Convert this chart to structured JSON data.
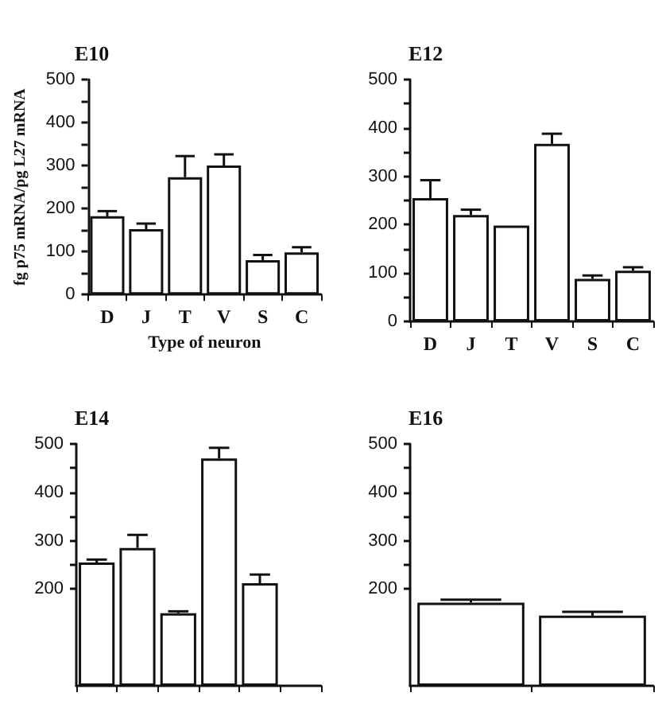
{
  "chart_data": [
    {
      "type": "bar",
      "title": "E10",
      "ylabel": "fg p75 mRNA/pg L27 mRNA",
      "xlabel": "Type of neuron",
      "categories": [
        "D",
        "J",
        "T",
        "V",
        "S",
        "C"
      ],
      "color": "#ffffff",
      "values": [
        182,
        152,
        273,
        300,
        80,
        98
      ],
      "errors": [
        [
          182,
          194
        ],
        [
          152,
          165
        ],
        [
          273,
          322
        ],
        [
          300,
          326
        ],
        [
          80,
          92
        ],
        [
          98,
          110
        ]
      ],
      "ylim": [
        0,
        500
      ],
      "yticks": [
        0,
        {
          "value": 50,
          "label": null
        },
        100,
        {
          "value": 150,
          "label": null
        },
        200,
        {
          "value": 250,
          "label": null
        },
        300,
        {
          "value": 350,
          "label": null
        },
        400,
        {
          "value": 450,
          "label": null
        },
        500
      ]
    },
    {
      "type": "bar",
      "title": "E12",
      "categories": [
        "D",
        "J",
        "T",
        "V",
        "S",
        "C"
      ],
      "color": "#ffffff",
      "values": [
        255,
        220,
        198,
        367,
        88,
        105
      ],
      "errors": [
        [
          255,
          292
        ],
        [
          220,
          231
        ],
        null,
        [
          367,
          388
        ],
        [
          88,
          95
        ],
        [
          105,
          112
        ]
      ],
      "ylim": [
        0,
        500
      ],
      "yticks": [
        0,
        {
          "value": 50,
          "label": null
        },
        100,
        {
          "value": 150,
          "label": null
        },
        200,
        {
          "value": 250,
          "label": null
        },
        300,
        {
          "value": 350,
          "label": null
        },
        400,
        {
          "value": 450,
          "label": null
        },
        500
      ]
    },
    {
      "type": "bar",
      "title": "E14",
      "categories": [
        null,
        null,
        null,
        null,
        null,
        null
      ],
      "color": "#ffffff",
      "values": [
        255,
        285,
        150,
        470,
        212,
        null
      ],
      "errors": [
        [
          255,
          261
        ],
        [
          285,
          312
        ],
        [
          150,
          154
        ],
        [
          470,
          492
        ],
        [
          212,
          230
        ],
        null
      ],
      "ylim": [
        0,
        500
      ],
      "yticks": [
        200,
        {
          "value": 250,
          "label": null
        },
        300,
        {
          "value": 350,
          "label": null
        },
        400,
        {
          "value": 450,
          "label": null
        },
        500
      ]
    },
    {
      "type": "bar",
      "title": "E16",
      "categories": [
        null,
        null
      ],
      "color": "#ffffff",
      "values": [
        172,
        145
      ],
      "errors": [
        [
          172,
          178
        ],
        [
          145,
          153
        ]
      ],
      "ylim": [
        0,
        500
      ],
      "yticks": [
        200,
        {
          "value": 250,
          "label": null
        },
        300,
        {
          "value": 350,
          "label": null
        },
        400,
        {
          "value": 450,
          "label": null
        },
        500
      ]
    }
  ]
}
